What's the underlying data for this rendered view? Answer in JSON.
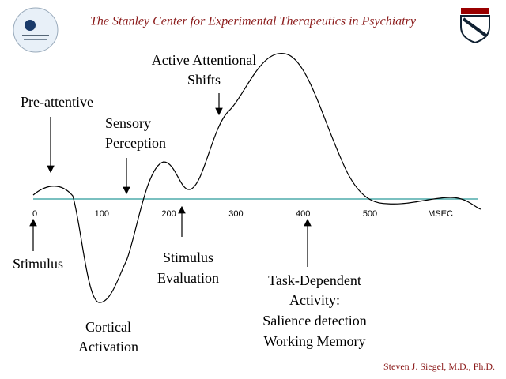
{
  "header": {
    "title": "The Stanley Center for Experimental Therapeutics in Psychiatry"
  },
  "axis": {
    "ticks": [
      "0",
      "100",
      "200",
      "300",
      "400",
      "500"
    ],
    "unit": "MSEC"
  },
  "labels": {
    "pre_attentive": [
      "Pre-attentive"
    ],
    "sensory_perception": [
      "Sensory",
      "Perception"
    ],
    "active_attentional_shifts": [
      "Active Attentional",
      "Shifts"
    ],
    "stimulus": [
      "Stimulus"
    ],
    "stimulus_evaluation": [
      "Stimulus",
      "Evaluation"
    ],
    "cortical_activation": [
      "Cortical",
      "Activation"
    ],
    "task_dependent": [
      "Task-Dependent",
      "Activity:",
      "Salience detection",
      "Working Memory"
    ]
  },
  "footer": {
    "author": "Steven J. Siegel, M.D., Ph.D."
  }
}
